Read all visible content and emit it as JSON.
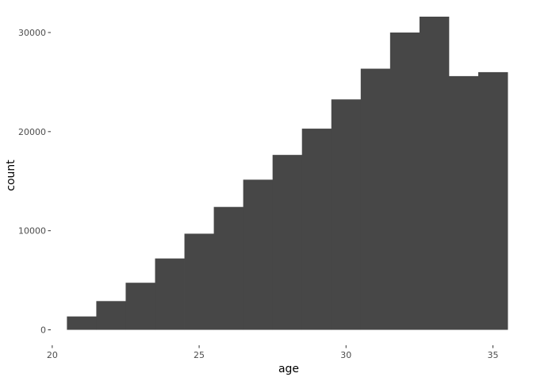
{
  "chart_data": {
    "type": "bar",
    "xlabel": "age",
    "ylabel": "count",
    "bin_width": 1,
    "xlim": [
      19.95,
      35.5
    ],
    "ylim": [
      -1560,
      32800
    ],
    "x_ticks": [
      20,
      25,
      30,
      35
    ],
    "y_ticks": [
      0,
      10000,
      20000,
      30000
    ],
    "bin_starts": [
      20.5,
      21.5,
      22.5,
      23.5,
      24.5,
      25.5,
      26.5,
      27.5,
      28.5,
      29.5,
      30.5,
      31.5,
      32.5,
      33.5,
      34.5
    ],
    "values": [
      1350,
      2900,
      4750,
      7200,
      9700,
      12400,
      15150,
      17650,
      20300,
      23250,
      26350,
      30000,
      31600,
      25600,
      26000
    ],
    "bar_color": "#474747",
    "grid": false
  }
}
